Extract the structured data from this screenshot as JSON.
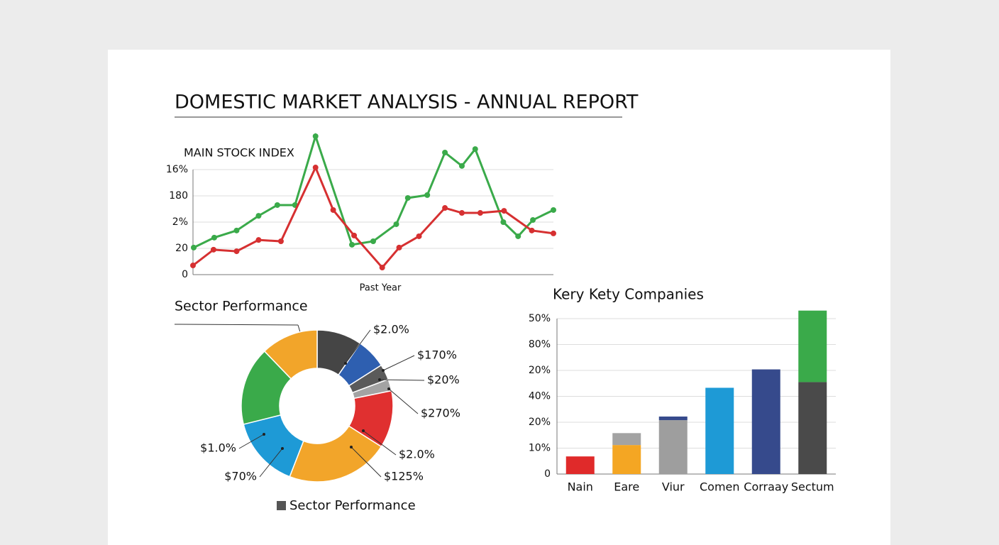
{
  "page_title": "DOMESTIC MARKET ANALYSIS - ANNUAL REPORT",
  "chart_data": [
    {
      "type": "line",
      "title": "MAIN STOCK INDEX",
      "xlabel": "Past Year",
      "xlim": [
        0,
        100
      ],
      "ylim": [
        0,
        4
      ],
      "yticks": [
        {
          "value": 0,
          "label": "0"
        },
        {
          "value": 1,
          "label": "20"
        },
        {
          "value": 2,
          "label": "2%"
        },
        {
          "value": 3,
          "label": "180"
        },
        {
          "value": 4,
          "label": "16%"
        }
      ],
      "grid": true,
      "series": [
        {
          "color": "#3aaa4a",
          "x": [
            0.2,
            5.9,
            12.1,
            18.2,
            23.4,
            28.3,
            34,
            44.1,
            50,
            56.4,
            59.6,
            65,
            69.9,
            74.6,
            78.3,
            86.1,
            90.2,
            94.3,
            100
          ],
          "values": [
            1.03,
            1.41,
            1.68,
            2.24,
            2.65,
            2.65,
            5.27,
            1.14,
            1.27,
            1.92,
            2.92,
            3.03,
            4.65,
            4.14,
            4.78,
            2.0,
            1.46,
            2.08,
            2.46
          ]
        },
        {
          "color": "#d63031",
          "x": [
            0,
            5.7,
            12.1,
            18.2,
            24.4,
            34,
            38.9,
            44.7,
            52.5,
            57.2,
            62.7,
            69.9,
            74.6,
            79.7,
            86.3,
            94,
            100
          ],
          "values": [
            0.35,
            0.95,
            0.89,
            1.32,
            1.27,
            4.08,
            2.46,
            1.49,
            0.27,
            1.03,
            1.46,
            2.54,
            2.35,
            2.35,
            2.43,
            1.68,
            1.57
          ]
        }
      ]
    },
    {
      "type": "pie",
      "title": "Sector Performance",
      "donut": true,
      "legend": "Sector Performance",
      "legend_color": "#555555",
      "values": [
        9.6,
        6.4,
        3.3,
        2.5,
        12.2,
        21.9,
        15.2,
        16.7,
        12.2
      ],
      "colors": [
        "#454545",
        "#2e5fb0",
        "#5a5a5a",
        "#a3a3a3",
        "#e03030",
        "#f2a52a",
        "#1e9ad6",
        "#3aaa4a",
        "#f2a52a"
      ],
      "annotations": [
        "$2.0%",
        "$170%",
        "$20%",
        "$270%",
        "$2.0%",
        "$125%",
        "$70%",
        "$1.0%"
      ]
    },
    {
      "type": "bar",
      "title": "Kery Kety Companies",
      "stacked": true,
      "categories": [
        "Nain",
        "Eare",
        "Viur",
        "Comen",
        "Corraay",
        "Sectum"
      ],
      "ylim": [
        0,
        6
      ],
      "yticks": [
        {
          "value": 0,
          "label": "0"
        },
        {
          "value": 1,
          "label": "10%"
        },
        {
          "value": 2,
          "label": "20%"
        },
        {
          "value": 3,
          "label": "40%"
        },
        {
          "value": 4,
          "label": "20%"
        },
        {
          "value": 5,
          "label": "80%"
        },
        {
          "value": 6,
          "label": "50%"
        }
      ],
      "grid": true,
      "series": [
        {
          "values": [
            0.68,
            1.12,
            2.08,
            3.33,
            4.04,
            3.55
          ],
          "colors": [
            "#e02a2a",
            "#f4a623",
            "#9e9e9e",
            "#1e9ad6",
            "#364a8c",
            "#4a4a4a"
          ]
        },
        {
          "values": [
            null,
            0.46,
            0.14,
            null,
            null,
            2.76
          ],
          "colors": [
            null,
            "#a3a3a3",
            "#364a8c",
            null,
            null,
            "#3aaa4a"
          ]
        }
      ]
    }
  ]
}
